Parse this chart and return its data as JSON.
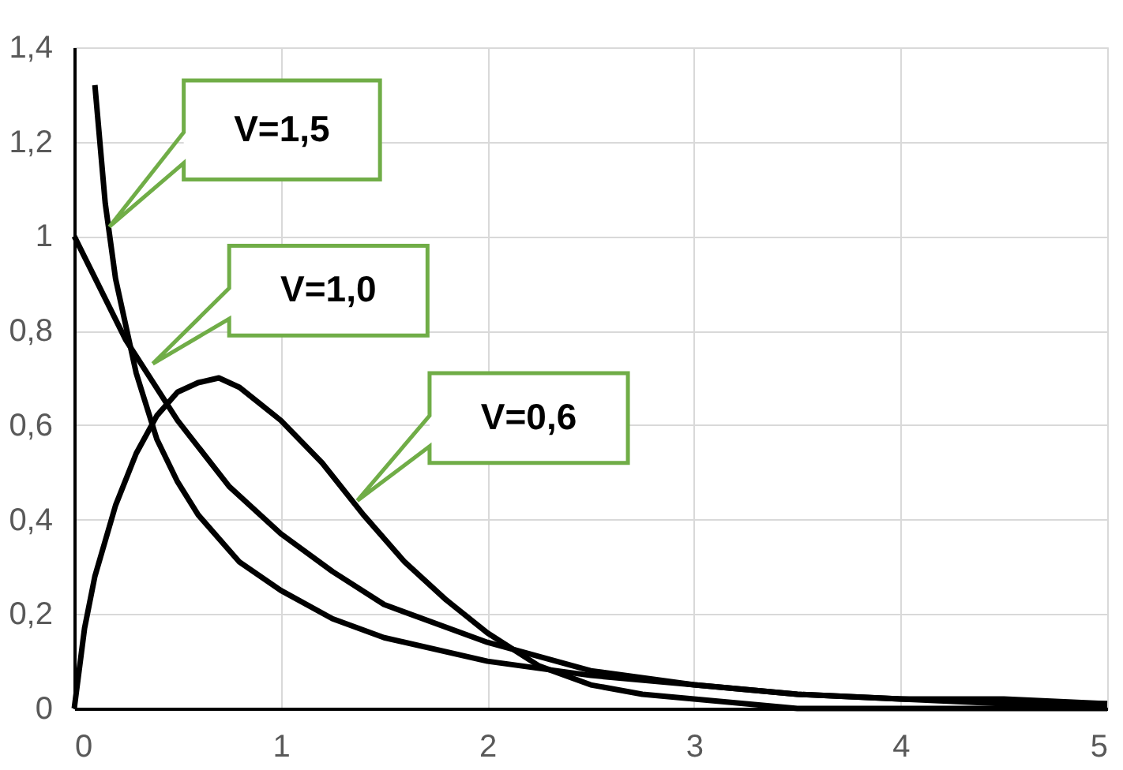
{
  "chart_data": {
    "type": "line",
    "series": [
      {
        "color": "#000000",
        "x": [
          0.1,
          0.15,
          0.2,
          0.3,
          0.4,
          0.5,
          0.6,
          0.8,
          1.0,
          1.25,
          1.5,
          2,
          2.5,
          3,
          3.5,
          4,
          4.5,
          5
        ],
        "values": [
          1.32,
          1.07,
          0.91,
          0.71,
          0.57,
          0.48,
          0.41,
          0.31,
          0.25,
          0.19,
          0.15,
          0.1,
          0.07,
          0.05,
          0.03,
          0.02,
          0.02,
          0.01
        ]
      },
      {
        "color": "#000000",
        "x": [
          0,
          0.25,
          0.5,
          0.75,
          1,
          1.25,
          1.5,
          2,
          2.5,
          3,
          3.5,
          4,
          4.5,
          5
        ],
        "values": [
          1.0,
          0.78,
          0.61,
          0.47,
          0.37,
          0.29,
          0.22,
          0.14,
          0.08,
          0.05,
          0.03,
          0.02,
          0.01,
          0.01
        ]
      },
      {
        "color": "#000000",
        "x": [
          0,
          0.05,
          0.1,
          0.2,
          0.3,
          0.4,
          0.5,
          0.6,
          0.7,
          0.8,
          1.0,
          1.2,
          1.4,
          1.6,
          1.8,
          2.0,
          2.25,
          2.5,
          2.75,
          3,
          3.5,
          4,
          5
        ],
        "values": [
          0,
          0.17,
          0.28,
          0.43,
          0.54,
          0.62,
          0.67,
          0.69,
          0.7,
          0.68,
          0.61,
          0.52,
          0.41,
          0.31,
          0.23,
          0.16,
          0.09,
          0.05,
          0.03,
          0.02,
          0.0,
          0.0,
          0.0
        ]
      }
    ],
    "xlim": [
      0,
      5
    ],
    "xticks": [
      0,
      1,
      2,
      3,
      4,
      5
    ],
    "ylim": [
      0,
      1.4
    ],
    "yticks": [
      0,
      {
        "value": 0.2,
        "label": "0,2"
      },
      {
        "value": 0.4,
        "label": "0,4"
      },
      {
        "value": 0.6,
        "label": "0,6"
      },
      {
        "value": 0.8,
        "label": "0,8"
      },
      1,
      {
        "value": 1.2,
        "label": "1,2"
      },
      {
        "value": 1.4,
        "label": "1,4"
      }
    ],
    "grid": true,
    "legend": false,
    "marker": "none",
    "line_style": "solid",
    "annotations": [
      "V=1,5",
      "V=1,0",
      "V=0,6"
    ]
  }
}
